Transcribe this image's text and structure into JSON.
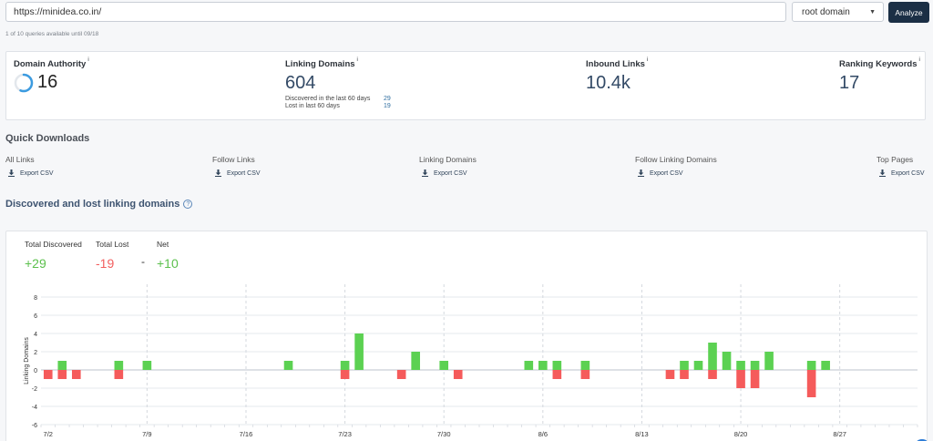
{
  "search": {
    "url_value": "https://minidea.co.in/",
    "scope_value": "root domain",
    "analyze_label": "Analyze",
    "quota_text": "1 of 10 queries available until 09/18"
  },
  "metrics": {
    "info_symbol": "i",
    "domain_authority": {
      "label": "Domain Authority",
      "value": "16",
      "score": 16
    },
    "linking_domains": {
      "label": "Linking Domains",
      "value": "604",
      "discovered_label": "Discovered in the last 60 days",
      "discovered_value": "29",
      "lost_label": "Lost in last 60 days",
      "lost_value": "19"
    },
    "inbound_links": {
      "label": "Inbound Links",
      "value": "10.4k"
    },
    "ranking_keywords": {
      "label": "Ranking Keywords",
      "value": "17"
    }
  },
  "quick_downloads": {
    "title": "Quick Downloads",
    "export_label": "Export CSV",
    "items": [
      {
        "label": "All Links"
      },
      {
        "label": "Follow Links"
      },
      {
        "label": "Linking Domains"
      },
      {
        "label": "Follow Linking Domains"
      },
      {
        "label": "Top Pages"
      }
    ]
  },
  "discovered": {
    "title": "Discovered and lost linking domains",
    "info_symbol": "?",
    "total_discovered_label": "Total Discovered",
    "total_discovered_value": "+29",
    "total_lost_label": "Total Lost",
    "total_lost_value": "-19",
    "net_separator": "-",
    "net_label": "Net",
    "net_value": "+10"
  },
  "colors": {
    "discovered": "#5cd152",
    "lost": "#f55b5b",
    "analyze_button": "#1b2f45",
    "metric_value": "#334a66"
  },
  "chart_data": {
    "type": "bar",
    "ylabel": "Linking Domains",
    "ylim": [
      -6,
      8
    ],
    "yticks": [
      8,
      6,
      4,
      2,
      0,
      -2,
      -4,
      -6
    ],
    "xtick_labels": [
      "7/2",
      "7/9",
      "7/16",
      "7/23",
      "7/30",
      "8/6",
      "8/13",
      "8/20",
      "8/27"
    ],
    "start_date": "7/2",
    "days": 62,
    "series": [
      {
        "name": "Discovered",
        "points": [
          {
            "x": "7/3",
            "y": 1
          },
          {
            "x": "7/7",
            "y": 1
          },
          {
            "x": "7/9",
            "y": 1
          },
          {
            "x": "7/19",
            "y": 1
          },
          {
            "x": "7/23",
            "y": 1
          },
          {
            "x": "7/24",
            "y": 4
          },
          {
            "x": "7/28",
            "y": 2
          },
          {
            "x": "7/30",
            "y": 1
          },
          {
            "x": "8/5",
            "y": 1
          },
          {
            "x": "8/6",
            "y": 1
          },
          {
            "x": "8/7",
            "y": 1
          },
          {
            "x": "8/9",
            "y": 1
          },
          {
            "x": "8/16",
            "y": 1
          },
          {
            "x": "8/17",
            "y": 1
          },
          {
            "x": "8/18",
            "y": 3
          },
          {
            "x": "8/19",
            "y": 2
          },
          {
            "x": "8/20",
            "y": 1
          },
          {
            "x": "8/21",
            "y": 1
          },
          {
            "x": "8/22",
            "y": 2
          },
          {
            "x": "8/25",
            "y": 1
          },
          {
            "x": "8/26",
            "y": 1
          }
        ]
      },
      {
        "name": "Lost",
        "points": [
          {
            "x": "7/2",
            "y": -1
          },
          {
            "x": "7/3",
            "y": -1
          },
          {
            "x": "7/4",
            "y": -1
          },
          {
            "x": "7/7",
            "y": -1
          },
          {
            "x": "7/23",
            "y": -1
          },
          {
            "x": "7/27",
            "y": -1
          },
          {
            "x": "7/31",
            "y": -1
          },
          {
            "x": "8/7",
            "y": -1
          },
          {
            "x": "8/9",
            "y": -1
          },
          {
            "x": "8/15",
            "y": -1
          },
          {
            "x": "8/16",
            "y": -1
          },
          {
            "x": "8/18",
            "y": -1
          },
          {
            "x": "8/20",
            "y": -2
          },
          {
            "x": "8/21",
            "y": -2
          },
          {
            "x": "8/25",
            "y": -3
          }
        ]
      }
    ]
  }
}
